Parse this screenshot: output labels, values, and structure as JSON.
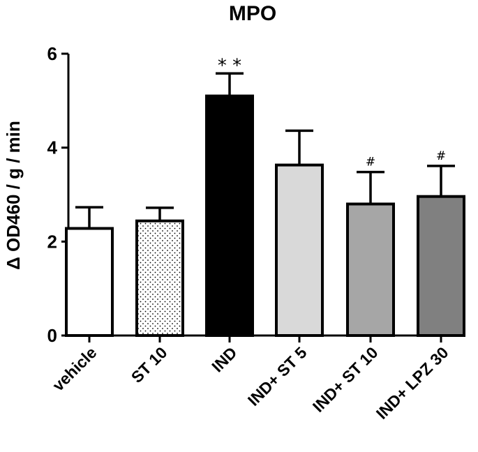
{
  "chart_data": {
    "type": "bar",
    "title": "MPO",
    "xlabel": "",
    "ylabel": "Δ OD460 / g / min",
    "ylim": [
      0,
      6
    ],
    "yticks": [
      0,
      2,
      4,
      6
    ],
    "categories": [
      "vehicle",
      "ST 10",
      "IND",
      "IND+ ST 5",
      "IND+ ST 10",
      "IND+ LPZ 30"
    ],
    "values": [
      2.28,
      2.44,
      5.1,
      3.63,
      2.8,
      2.96
    ],
    "errors": [
      0.45,
      0.28,
      0.48,
      0.73,
      0.68,
      0.65
    ],
    "fills": [
      "#ffffff",
      "dotted",
      "#000000",
      "#d9d9d9",
      "#a6a6a6",
      "#808080"
    ],
    "annotations": [
      "",
      "",
      "* *",
      "",
      "#",
      "#"
    ]
  }
}
